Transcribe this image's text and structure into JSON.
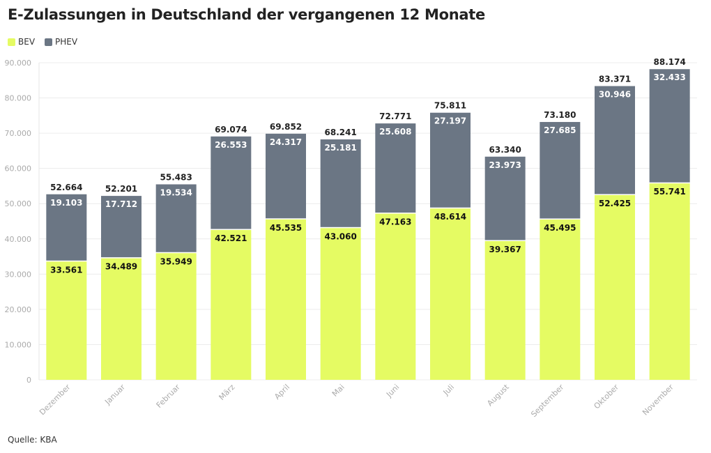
{
  "chart_data": {
    "type": "bar",
    "stacked": true,
    "title": "E-Zulassungen in Deutschland der vergangenen 12 Monate",
    "categories": [
      "Dezember",
      "Januar",
      "Februar",
      "März",
      "April",
      "Mai",
      "Juni",
      "Juli",
      "August",
      "September",
      "Oktober",
      "November"
    ],
    "series": [
      {
        "name": "BEV",
        "color": "#e5fb63",
        "values": [
          33561,
          34489,
          35949,
          42521,
          45535,
          43060,
          47163,
          48614,
          39367,
          45495,
          52425,
          55741
        ]
      },
      {
        "name": "PHEV",
        "color": "#6b7684",
        "values": [
          19103,
          17712,
          19534,
          26553,
          24317,
          25181,
          25608,
          27197,
          23973,
          27685,
          30946,
          32433
        ]
      }
    ],
    "totals": [
      52664,
      52201,
      55483,
      69074,
      69852,
      68241,
      72771,
      75811,
      63340,
      73180,
      83371,
      88174
    ],
    "ylim": [
      0,
      90000
    ],
    "yticks": [
      0,
      10000,
      20000,
      30000,
      40000,
      50000,
      60000,
      70000,
      80000,
      90000
    ],
    "grid": true,
    "legend": "top-left",
    "source": "Quelle: KBA"
  }
}
